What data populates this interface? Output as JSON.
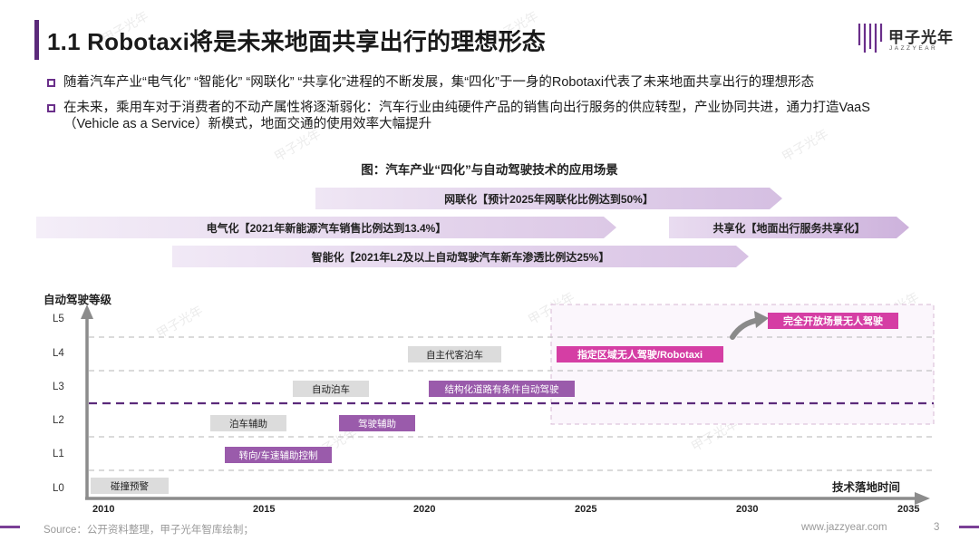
{
  "header": {
    "title": "1.1 Robotaxi将是未来地面共享出行的理想形态",
    "logo_cn": "甲子光年",
    "logo_en": "JAZZYEAR"
  },
  "bullets": [
    {
      "text": "随着汽车产业“电气化” “智能化” “网联化” “共享化”进程的不断发展，集“四化”于一身的Robotaxi代表了未来地面共享出行的理想形态"
    },
    {
      "line1": "在未来，乘用车对于消费者的不动产属性将逐渐弱化：汽车行业由纯硬件产品的销售向出行服务的供应转型，产业协同共进，通力打造VaaS",
      "line2": "（Vehicle as a Service）新模式，地面交通的使用效率大幅提升"
    }
  ],
  "diagram": {
    "title": "图：汽车产业“四化”与自动驾驶技术的应用场景",
    "banners": {
      "connected": "网联化【预计2025年网联化比例达到50%】",
      "electric": "电气化【2021年新能源汽车销售比例达到13.4%】",
      "shared": "共享化【地面出行服务共享化】",
      "intelligent": "智能化【2021年L2及以上自动驾驶汽车新车渗透比例达25%】"
    },
    "y_axis_title": "自动驾驶等级",
    "x_axis_title": "技术落地时间",
    "levels": [
      "L5",
      "L4",
      "L3",
      "L2",
      "L1",
      "L0"
    ],
    "years": [
      "2010",
      "2015",
      "2020",
      "2025",
      "2030",
      "2035"
    ],
    "tags": {
      "collision_warning": "碰撞预警",
      "steering_speed_assist": "转向/车速辅助控制",
      "parking_assist": "泊车辅助",
      "driving_assist": "驾驶辅助",
      "auto_parking": "自动泊车",
      "structured_road": "结构化道路有条件自动驾驶",
      "valet_parking": "自主代客泊车",
      "robotaxi": "指定区域无人驾驶/Robotaxi",
      "full_driverless": "完全开放场景无人驾驶"
    },
    "watermark": "甲子光年"
  },
  "footer": {
    "source": "Source：公开资料整理，甲子光年智库绘制；",
    "url": "www.jazzyear.com",
    "page": "3"
  },
  "colors": {
    "brand_purple": "#5b2a7a",
    "tag_purple": "#9a5bab",
    "tag_magenta": "#d53ea4",
    "banner_lilac": "#dcc8e6"
  }
}
